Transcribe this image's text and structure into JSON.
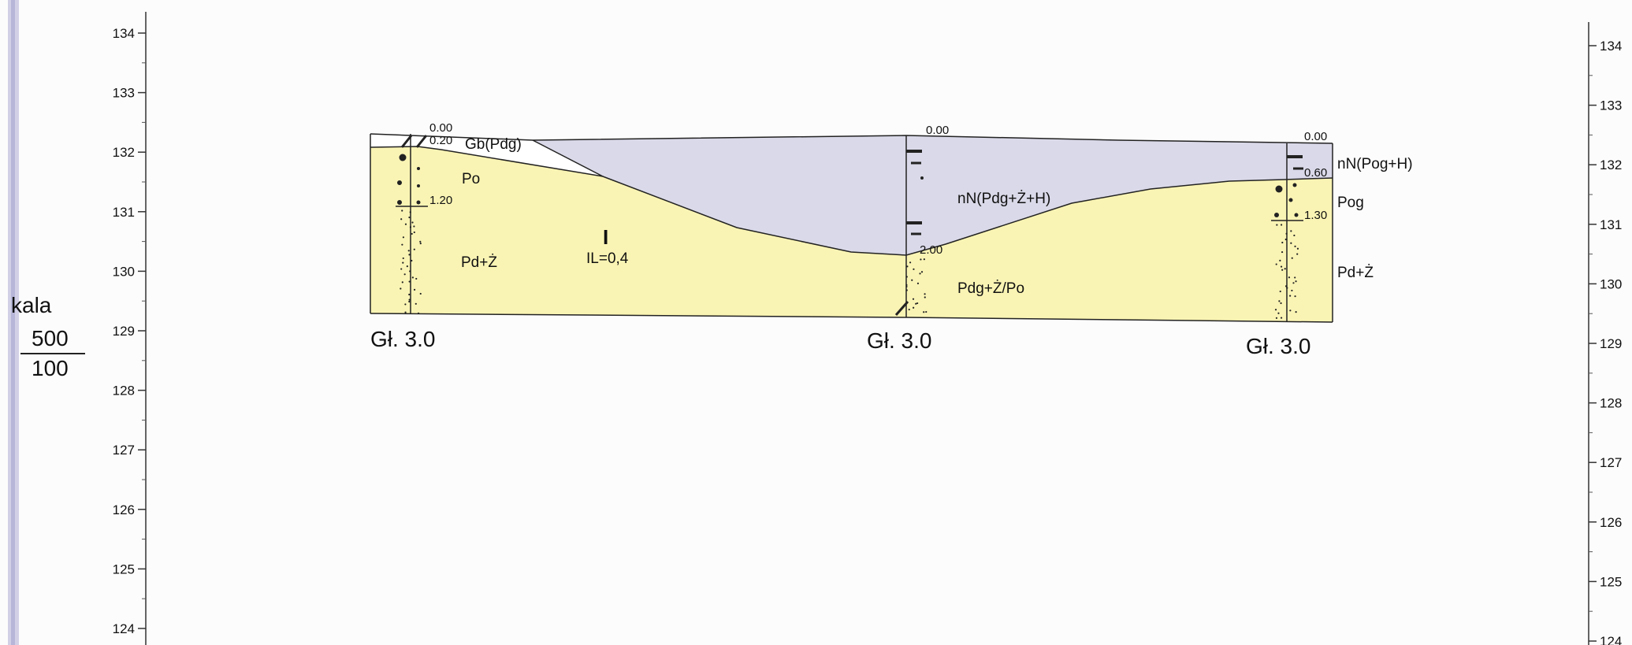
{
  "axes": {
    "left_ticks": [
      "134",
      "133",
      "132",
      "131",
      "130",
      "129",
      "128",
      "127",
      "126",
      "125",
      "124"
    ],
    "right_ticks": [
      "134",
      "133",
      "132",
      "131",
      "130",
      "129",
      "128",
      "127",
      "126",
      "125",
      "124"
    ]
  },
  "scale": {
    "word": "kala",
    "numerator": "500",
    "denominator": "100"
  },
  "boreholes": [
    {
      "id": "bh1",
      "depth_label": "Gł. 3.0",
      "top_depth": "0.00",
      "marks": [
        "0.20",
        "1.20"
      ]
    },
    {
      "id": "bh2",
      "depth_label": "Gł. 3.0",
      "top_depth": "0.00",
      "marks": [
        "2.00"
      ]
    },
    {
      "id": "bh3",
      "depth_label": "Gł. 3.0",
      "top_depth": "0.00",
      "marks": [
        "0.60",
        "1.30"
      ]
    }
  ],
  "soil_labels": {
    "gb_pdg": "Gb(Pdg)",
    "po": "Po",
    "pd_z_left": "Pd+Ż",
    "layer_index": "I",
    "il_value": "IL=0,4",
    "nn_center": "nN(Pdg+Ż+H)",
    "pdg_z_po": "Pdg+Ż/Po",
    "nn_right": "nN(Pog+H)",
    "pog": "Pog",
    "pd_z_right": "Pd+Ż"
  },
  "colors": {
    "sand": "#faf4b4",
    "fill_soil": "#d9d9e9",
    "topsoil": "#ffffff",
    "line": "#222222",
    "tick_text": "#222222"
  }
}
